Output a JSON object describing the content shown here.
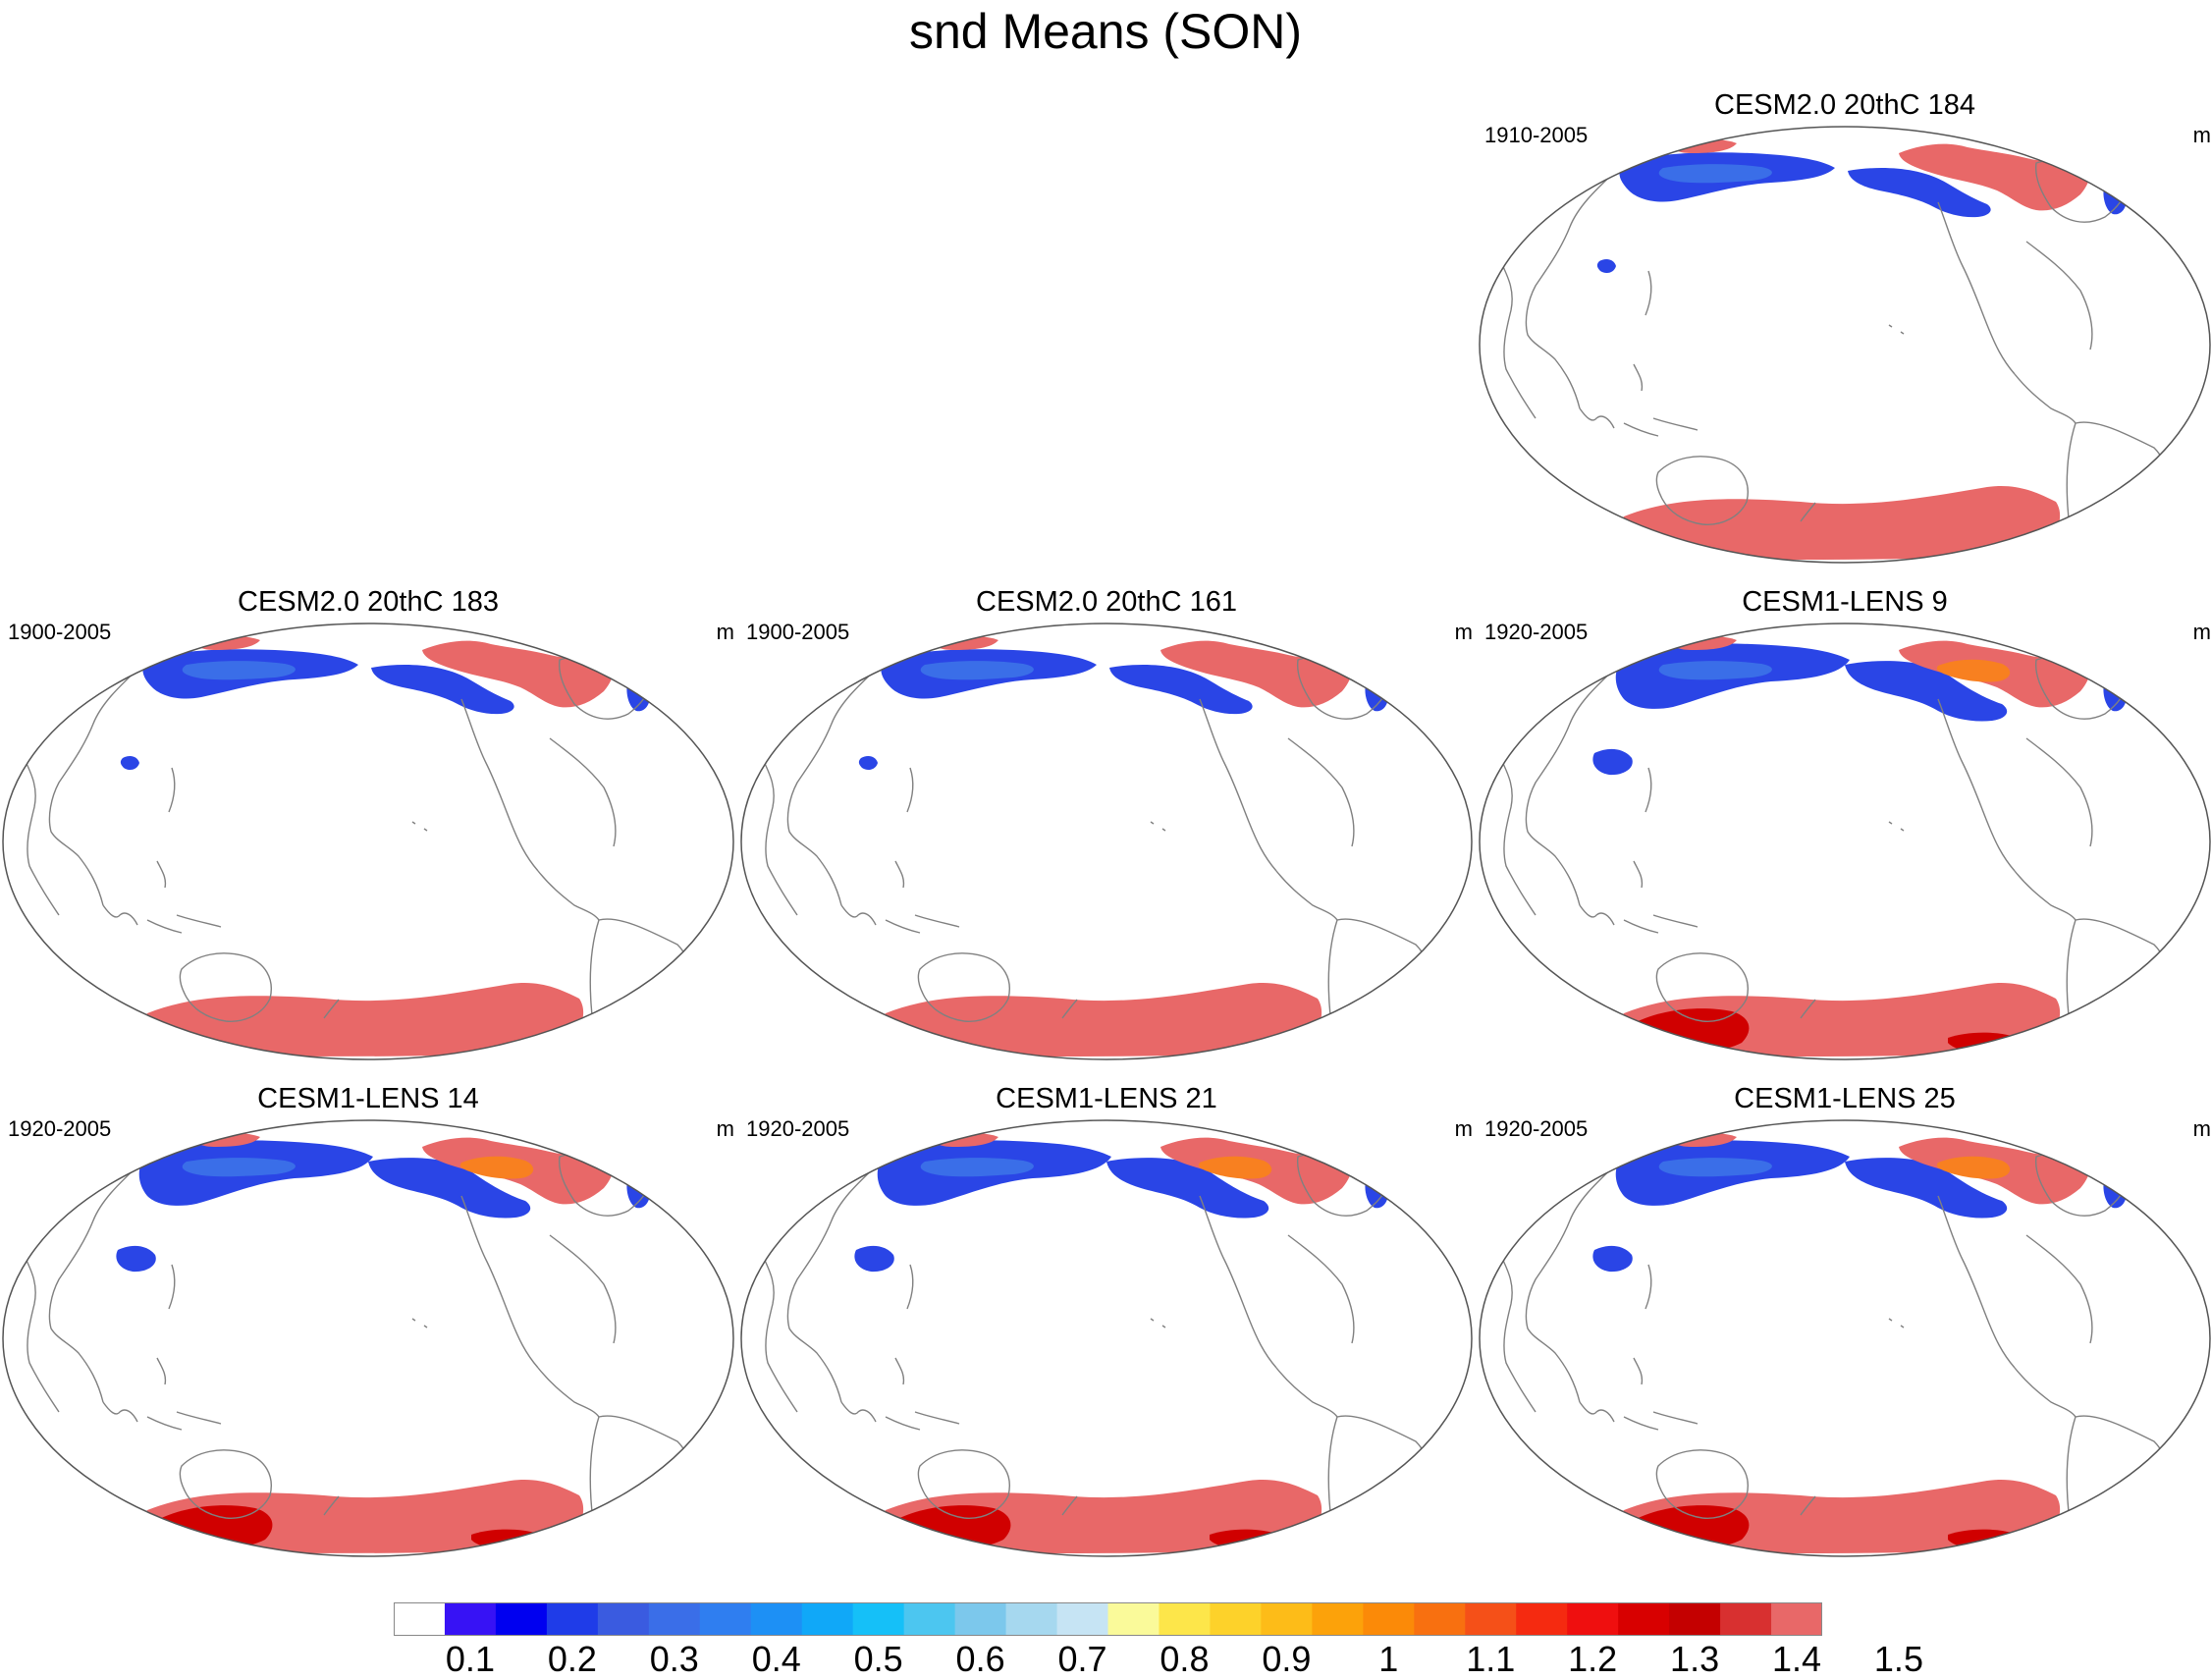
{
  "title": "snd Means (SON)",
  "panels": [
    {
      "id": "cesm2-184",
      "title": "CESM2.0 20thC 184",
      "years": "1910-2005",
      "units": "m",
      "snow_level": "low",
      "antarctic_deep": false
    },
    {
      "id": "cesm2-183",
      "title": "CESM2.0 20thC 183",
      "years": "1900-2005",
      "units": "m",
      "snow_level": "low",
      "antarctic_deep": false
    },
    {
      "id": "cesm2-161",
      "title": "CESM2.0 20thC 161",
      "years": "1900-2005",
      "units": "m",
      "snow_level": "low",
      "antarctic_deep": false
    },
    {
      "id": "lens-9",
      "title": "CESM1-LENS 9",
      "years": "1920-2005",
      "units": "m",
      "snow_level": "medium",
      "antarctic_deep": true
    },
    {
      "id": "lens-14",
      "title": "CESM1-LENS 14",
      "years": "1920-2005",
      "units": "m",
      "snow_level": "medium",
      "antarctic_deep": true
    },
    {
      "id": "lens-21",
      "title": "CESM1-LENS 21",
      "years": "1920-2005",
      "units": "m",
      "snow_level": "medium",
      "antarctic_deep": true
    },
    {
      "id": "lens-25",
      "title": "CESM1-LENS 25",
      "years": "1920-2005",
      "units": "m",
      "snow_level": "medium",
      "antarctic_deep": true
    }
  ],
  "colorbar": {
    "labels": [
      "0.1",
      "0.2",
      "0.3",
      "0.4",
      "0.5",
      "0.6",
      "0.7",
      "0.8",
      "0.9",
      "1",
      "1.1",
      "1.2",
      "1.3",
      "1.4",
      "1.5"
    ],
    "colors": [
      "#ffffff",
      "#3712f5",
      "#0000f0",
      "#1f3ce8",
      "#3a5be0",
      "#3a6ee8",
      "#2f7ef0",
      "#1d90f5",
      "#10a8f8",
      "#15c0f8",
      "#4cc6f0",
      "#7cc8ec",
      "#a6d8ef",
      "#c6e4f4",
      "#fafa9a",
      "#fde64a",
      "#fdd22a",
      "#fdbc18",
      "#fca20a",
      "#fb8a08",
      "#f87010",
      "#f55018",
      "#f52a10",
      "#ef0f0f",
      "#d80000",
      "#c40000",
      "#d83030",
      "#e86868"
    ]
  },
  "colors": {
    "snow_shallow": "#2a45e6",
    "snow_shallow_alt": "#3a6ee8",
    "snow_deep": "#e86868",
    "snow_deepest": "#d00000",
    "snow_orange": "#f88020",
    "coast": "#808080"
  }
}
